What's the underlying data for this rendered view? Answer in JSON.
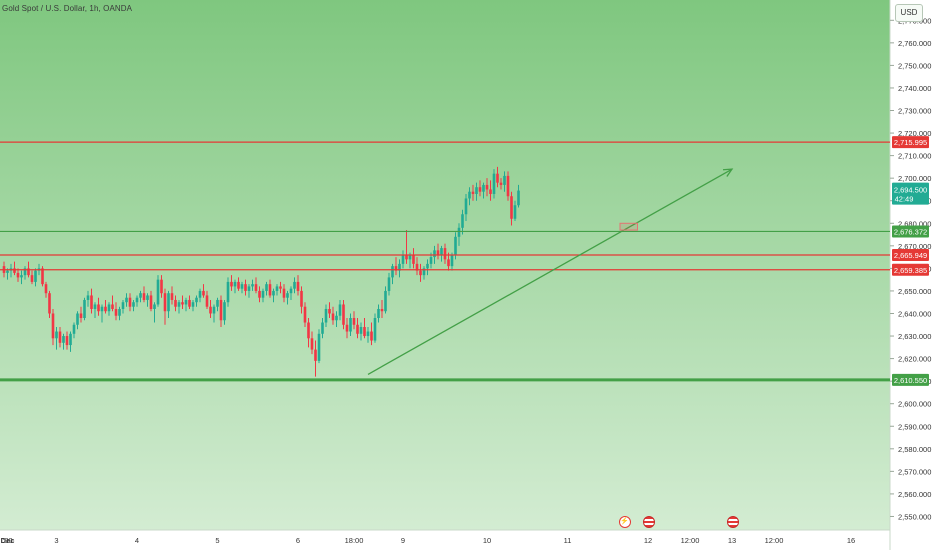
{
  "header": {
    "title": "Gold Spot / U.S. Dollar, 1h, OANDA",
    "currency": "USD"
  },
  "colors": {
    "up": "#22ab94",
    "down": "#f23645",
    "bg_top": "#7fc77f",
    "bg_bottom": "#d3ecd2",
    "resistance": "#e53935",
    "support": "#43a047",
    "trend": "#43a047"
  },
  "chart_data": {
    "type": "candlestick",
    "ylim": [
      2544,
      2779
    ],
    "y_ticks": [
      "2,550.000",
      "2,560.000",
      "2,570.000",
      "2,580.000",
      "2,590.000",
      "2,600.000",
      "2,610.000",
      "2,620.000",
      "2,630.000",
      "2,640.000",
      "2,650.000",
      "2,660.000",
      "2,670.000",
      "2,680.000",
      "2,690.000",
      "2,700.000",
      "2,710.000",
      "2,720.000",
      "2,730.000",
      "2,740.000",
      "2,750.000",
      "2,760.000",
      "2,770.000"
    ],
    "x_labels": [
      {
        "t": -0.5,
        "label": ":00"
      },
      {
        "t": 1,
        "label": "Dec",
        "bold": true
      },
      {
        "t": 15,
        "label": "3"
      },
      {
        "t": 38,
        "label": "4"
      },
      {
        "t": 61,
        "label": "5"
      },
      {
        "t": 84,
        "label": "6"
      },
      {
        "t": 100,
        "label": "18:00"
      },
      {
        "t": 114,
        "label": "9"
      },
      {
        "t": 138,
        "label": "10"
      },
      {
        "t": 161,
        "label": "11"
      },
      {
        "t": 184,
        "label": "12"
      },
      {
        "t": 196,
        "label": "12:00"
      },
      {
        "t": 208,
        "label": "13"
      },
      {
        "t": 220,
        "label": "12:00"
      },
      {
        "t": 242,
        "label": "16"
      }
    ],
    "price_lines": [
      {
        "name": "level-2715",
        "value": 2715.995,
        "label": "2,715.995",
        "kind": "resistance"
      },
      {
        "name": "level-2676",
        "value": 2676.372,
        "label": "2,676.372",
        "kind": "support"
      },
      {
        "name": "level-2665",
        "value": 2665.949,
        "label": "2,665.949",
        "kind": "resistance"
      },
      {
        "name": "level-2659",
        "value": 2659.385,
        "label": "2,659.385",
        "kind": "resistance"
      },
      {
        "name": "level-2610",
        "value": 2610.55,
        "label": "2,610.550",
        "kind": "support"
      }
    ],
    "last_price": {
      "value": 2694.5,
      "label": "2,694.500",
      "countdown": "42:49"
    },
    "trendline": {
      "t1": 104,
      "p1": 2613,
      "t2": 208,
      "p2": 2704
    },
    "highlight_box": {
      "t1": 176,
      "t2": 181,
      "p1": 2677,
      "p2": 2680
    },
    "events": [
      {
        "t": 177,
        "kind": "lightning",
        "symbol": "⚡"
      },
      {
        "t": 184,
        "kind": "flag-us",
        "symbol": "≡"
      },
      {
        "t": 208,
        "kind": "flag-us",
        "symbol": "≡"
      }
    ],
    "candles": [
      [
        2661,
        2663,
        2656,
        2658
      ],
      [
        2658,
        2660,
        2655,
        2659
      ],
      [
        2659,
        2662,
        2656,
        2660
      ],
      [
        2660,
        2663,
        2657,
        2658
      ],
      [
        2658,
        2660,
        2654,
        2656
      ],
      [
        2656,
        2659,
        2653,
        2657
      ],
      [
        2657,
        2661,
        2655,
        2660
      ],
      [
        2660,
        2663,
        2656,
        2657
      ],
      [
        2657,
        2659,
        2653,
        2654
      ],
      [
        2654,
        2660,
        2652,
        2659
      ],
      [
        2659,
        2662,
        2657,
        2660
      ],
      [
        2660,
        2661,
        2652,
        2653
      ],
      [
        2653,
        2654,
        2647,
        2649
      ],
      [
        2649,
        2650,
        2638,
        2640
      ],
      [
        2640,
        2642,
        2626,
        2629
      ],
      [
        2629,
        2634,
        2624,
        2632
      ],
      [
        2632,
        2634,
        2625,
        2627
      ],
      [
        2627,
        2631,
        2624,
        2630
      ],
      [
        2630,
        2632,
        2624,
        2626
      ],
      [
        2626,
        2632,
        2623,
        2631
      ],
      [
        2631,
        2636,
        2629,
        2635
      ],
      [
        2635,
        2641,
        2633,
        2640
      ],
      [
        2640,
        2643,
        2636,
        2638
      ],
      [
        2638,
        2647,
        2637,
        2646
      ],
      [
        2646,
        2650,
        2643,
        2648
      ],
      [
        2648,
        2651,
        2640,
        2642
      ],
      [
        2642,
        2645,
        2638,
        2644
      ],
      [
        2644,
        2647,
        2639,
        2641
      ],
      [
        2641,
        2644,
        2636,
        2643
      ],
      [
        2643,
        2646,
        2640,
        2641
      ],
      [
        2641,
        2645,
        2639,
        2644
      ],
      [
        2644,
        2648,
        2641,
        2642
      ],
      [
        2642,
        2645,
        2637,
        2639
      ],
      [
        2639,
        2643,
        2637,
        2642
      ],
      [
        2642,
        2646,
        2640,
        2645
      ],
      [
        2645,
        2649,
        2643,
        2647
      ],
      [
        2647,
        2649,
        2641,
        2643
      ],
      [
        2643,
        2646,
        2641,
        2645
      ],
      [
        2645,
        2648,
        2643,
        2647
      ],
      [
        2647,
        2650,
        2645,
        2649
      ],
      [
        2649,
        2652,
        2645,
        2646
      ],
      [
        2646,
        2649,
        2643,
        2648
      ],
      [
        2648,
        2650,
        2641,
        2642
      ],
      [
        2642,
        2645,
        2636,
        2644
      ],
      [
        2644,
        2657,
        2643,
        2655
      ],
      [
        2655,
        2657,
        2647,
        2649
      ],
      [
        2649,
        2651,
        2635,
        2641
      ],
      [
        2641,
        2650,
        2638,
        2649
      ],
      [
        2649,
        2652,
        2644,
        2646
      ],
      [
        2646,
        2648,
        2641,
        2643
      ],
      [
        2643,
        2646,
        2640,
        2645
      ],
      [
        2645,
        2648,
        2642,
        2644
      ],
      [
        2644,
        2647,
        2641,
        2646
      ],
      [
        2646,
        2648,
        2642,
        2643
      ],
      [
        2643,
        2646,
        2641,
        2645
      ],
      [
        2645,
        2648,
        2643,
        2647
      ],
      [
        2647,
        2651,
        2645,
        2650
      ],
      [
        2650,
        2653,
        2647,
        2648
      ],
      [
        2648,
        2650,
        2642,
        2643
      ],
      [
        2643,
        2646,
        2638,
        2640
      ],
      [
        2640,
        2644,
        2636,
        2643
      ],
      [
        2643,
        2647,
        2641,
        2646
      ],
      [
        2646,
        2648,
        2634,
        2637
      ],
      [
        2637,
        2646,
        2635,
        2645
      ],
      [
        2645,
        2656,
        2643,
        2654
      ],
      [
        2654,
        2657,
        2650,
        2652
      ],
      [
        2652,
        2655,
        2649,
        2654
      ],
      [
        2654,
        2656,
        2650,
        2651
      ],
      [
        2651,
        2654,
        2649,
        2653
      ],
      [
        2653,
        2655,
        2648,
        2650
      ],
      [
        2650,
        2653,
        2647,
        2652
      ],
      [
        2652,
        2655,
        2650,
        2653
      ],
      [
        2653,
        2656,
        2649,
        2650
      ],
      [
        2650,
        2652,
        2645,
        2647
      ],
      [
        2647,
        2651,
        2645,
        2650
      ],
      [
        2650,
        2654,
        2648,
        2653
      ],
      [
        2653,
        2655,
        2647,
        2648
      ],
      [
        2648,
        2651,
        2645,
        2650
      ],
      [
        2650,
        2653,
        2648,
        2652
      ],
      [
        2652,
        2654,
        2649,
        2651
      ],
      [
        2651,
        2653,
        2645,
        2647
      ],
      [
        2647,
        2650,
        2644,
        2649
      ],
      [
        2649,
        2652,
        2646,
        2651
      ],
      [
        2651,
        2656,
        2649,
        2654
      ],
      [
        2654,
        2657,
        2648,
        2650
      ],
      [
        2650,
        2652,
        2640,
        2643
      ],
      [
        2643,
        2645,
        2634,
        2636
      ],
      [
        2636,
        2638,
        2625,
        2629
      ],
      [
        2629,
        2632,
        2622,
        2624
      ],
      [
        2624,
        2628,
        2612,
        2619
      ],
      [
        2619,
        2633,
        2618,
        2631
      ],
      [
        2631,
        2638,
        2629,
        2636
      ],
      [
        2636,
        2644,
        2634,
        2642
      ],
      [
        2642,
        2645,
        2638,
        2640
      ],
      [
        2640,
        2643,
        2635,
        2637
      ],
      [
        2637,
        2641,
        2634,
        2639
      ],
      [
        2639,
        2646,
        2637,
        2644
      ],
      [
        2644,
        2646,
        2633,
        2635
      ],
      [
        2635,
        2638,
        2629,
        2632
      ],
      [
        2632,
        2640,
        2630,
        2638
      ],
      [
        2638,
        2641,
        2633,
        2635
      ],
      [
        2635,
        2638,
        2629,
        2631
      ],
      [
        2631,
        2636,
        2628,
        2634
      ],
      [
        2634,
        2638,
        2629,
        2630
      ],
      [
        2630,
        2634,
        2627,
        2632
      ],
      [
        2632,
        2636,
        2626,
        2628
      ],
      [
        2628,
        2640,
        2627,
        2638
      ],
      [
        2638,
        2644,
        2636,
        2642
      ],
      [
        2642,
        2646,
        2638,
        2641
      ],
      [
        2641,
        2652,
        2640,
        2650
      ],
      [
        2650,
        2658,
        2648,
        2656
      ],
      [
        2656,
        2662,
        2653,
        2661
      ],
      [
        2661,
        2665,
        2657,
        2659
      ],
      [
        2659,
        2664,
        2656,
        2662
      ],
      [
        2662,
        2668,
        2660,
        2666
      ],
      [
        2666,
        2677,
        2662,
        2664
      ],
      [
        2664,
        2667,
        2660,
        2666
      ],
      [
        2666,
        2669,
        2660,
        2662
      ],
      [
        2662,
        2665,
        2657,
        2659
      ],
      [
        2659,
        2662,
        2654,
        2657
      ],
      [
        2657,
        2661,
        2655,
        2660
      ],
      [
        2660,
        2664,
        2657,
        2662
      ],
      [
        2662,
        2667,
        2660,
        2665
      ],
      [
        2665,
        2670,
        2662,
        2668
      ],
      [
        2668,
        2671,
        2664,
        2666
      ],
      [
        2666,
        2670,
        2663,
        2669
      ],
      [
        2669,
        2671,
        2662,
        2664
      ],
      [
        2664,
        2667,
        2659,
        2661
      ],
      [
        2661,
        2667,
        2659,
        2666
      ],
      [
        2666,
        2676,
        2664,
        2674
      ],
      [
        2674,
        2680,
        2670,
        2678
      ],
      [
        2678,
        2686,
        2675,
        2684
      ],
      [
        2684,
        2693,
        2681,
        2691
      ],
      [
        2691,
        2696,
        2688,
        2694
      ],
      [
        2694,
        2697,
        2690,
        2693
      ],
      [
        2693,
        2698,
        2690,
        2696
      ],
      [
        2696,
        2699,
        2692,
        2694
      ],
      [
        2694,
        2698,
        2691,
        2697
      ],
      [
        2697,
        2700,
        2692,
        2695
      ],
      [
        2695,
        2699,
        2690,
        2693
      ],
      [
        2693,
        2704,
        2691,
        2702
      ],
      [
        2702,
        2705,
        2696,
        2698
      ],
      [
        2698,
        2700,
        2695,
        2697
      ],
      [
        2697,
        2703,
        2694,
        2701
      ],
      [
        2701,
        2703,
        2690,
        2692
      ],
      [
        2692,
        2694,
        2679,
        2682
      ],
      [
        2682,
        2690,
        2681,
        2688
      ],
      [
        2688,
        2697,
        2687,
        2694.5
      ]
    ]
  }
}
